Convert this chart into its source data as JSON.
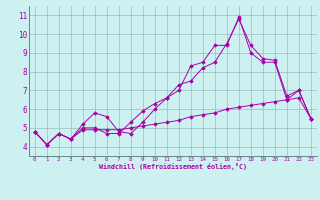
{
  "xlabel": "Windchill (Refroidissement éolien,°C)",
  "background_color": "#cdf0f0",
  "line_color": "#aa00aa",
  "grid_color": "#99bbbb",
  "xlim": [
    -0.5,
    23.5
  ],
  "ylim": [
    3.5,
    11.5
  ],
  "xticks": [
    0,
    1,
    2,
    3,
    4,
    5,
    6,
    7,
    8,
    9,
    10,
    11,
    12,
    13,
    14,
    15,
    16,
    17,
    18,
    19,
    20,
    21,
    22,
    23
  ],
  "yticks": [
    4,
    5,
    6,
    7,
    8,
    9,
    10,
    11
  ],
  "line1_x": [
    0,
    1,
    2,
    3,
    4,
    5,
    6,
    7,
    8,
    9,
    10,
    11,
    12,
    13,
    14,
    15,
    16,
    17,
    18,
    19,
    20,
    21,
    22,
    23
  ],
  "line1_y": [
    4.8,
    4.1,
    4.7,
    4.4,
    5.0,
    5.0,
    4.7,
    4.7,
    5.3,
    5.9,
    6.3,
    6.6,
    7.3,
    7.5,
    8.2,
    8.5,
    9.5,
    10.8,
    9.4,
    8.7,
    8.6,
    6.7,
    7.0,
    5.5
  ],
  "line2_x": [
    0,
    1,
    2,
    3,
    4,
    5,
    6,
    7,
    8,
    9,
    10,
    11,
    12,
    13,
    14,
    15,
    16,
    17,
    18,
    19,
    20,
    21,
    22,
    23
  ],
  "line2_y": [
    4.8,
    4.1,
    4.7,
    4.4,
    5.2,
    5.8,
    5.6,
    4.8,
    4.7,
    5.3,
    6.0,
    6.6,
    7.0,
    8.3,
    8.5,
    9.4,
    9.4,
    10.9,
    9.0,
    8.5,
    8.5,
    6.5,
    7.0,
    5.5
  ],
  "line3_x": [
    0,
    1,
    2,
    3,
    4,
    5,
    6,
    7,
    8,
    9,
    10,
    11,
    12,
    13,
    14,
    15,
    16,
    17,
    18,
    19,
    20,
    21,
    22,
    23
  ],
  "line3_y": [
    4.8,
    4.1,
    4.7,
    4.4,
    4.9,
    4.9,
    4.9,
    4.9,
    5.0,
    5.1,
    5.2,
    5.3,
    5.4,
    5.6,
    5.7,
    5.8,
    6.0,
    6.1,
    6.2,
    6.3,
    6.4,
    6.5,
    6.6,
    5.5
  ]
}
